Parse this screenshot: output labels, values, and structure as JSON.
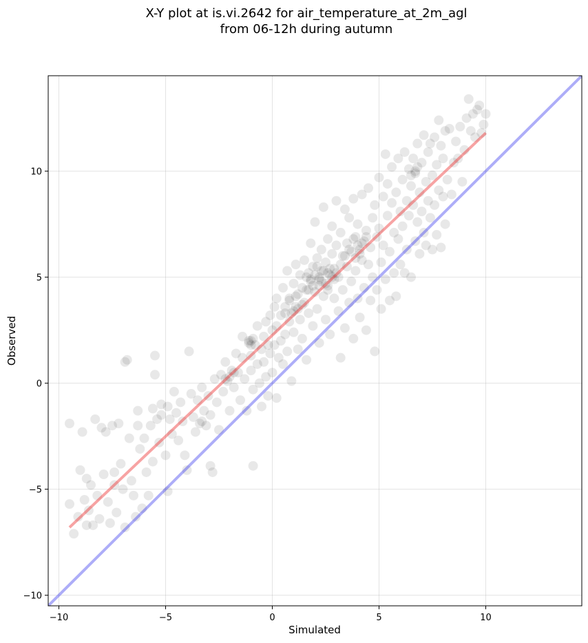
{
  "chart_data": {
    "type": "scatter",
    "title": [
      "X-Y plot at is.vi.2642 for air_temperature_at_2m_agl",
      "from 06-12h during autumn"
    ],
    "xlabel": "Simulated",
    "ylabel": "Observed",
    "xlim": [
      -10.5,
      14.5
    ],
    "ylim": [
      -10.5,
      14.5
    ],
    "xticks": [
      -10,
      -5,
      0,
      5,
      10
    ],
    "yticks": [
      -10,
      -5,
      0,
      5,
      10
    ],
    "xtick_labels": [
      "−10",
      "−5",
      "0",
      "5",
      "10"
    ],
    "ytick_labels": [
      "−10",
      "−5",
      "0",
      "5",
      "10"
    ],
    "grid": true,
    "point_color": "#000000",
    "point_alpha": 0.09,
    "fit_line": {
      "x": [
        -9.5,
        10
      ],
      "y": [
        -6.8,
        11.8
      ],
      "color": "#ee3333",
      "alpha": 0.45
    },
    "identity_line": {
      "x": [
        -10.5,
        14.5
      ],
      "y": [
        -10.5,
        14.5
      ],
      "color": "#3333ee",
      "alpha": 0.4
    },
    "points": [
      [
        -9.5,
        -1.9
      ],
      [
        -9.5,
        -5.7
      ],
      [
        -9.3,
        -7.1
      ],
      [
        -9.1,
        -6.3
      ],
      [
        -9.0,
        -4.1
      ],
      [
        -8.9,
        -2.3
      ],
      [
        -8.8,
        -5.5
      ],
      [
        -8.7,
        -4.5
      ],
      [
        -8.7,
        -6.7
      ],
      [
        -8.6,
        -6.0
      ],
      [
        -8.5,
        -4.8
      ],
      [
        -8.4,
        -6.7
      ],
      [
        -8.3,
        -1.7
      ],
      [
        -8.2,
        -5.3
      ],
      [
        -8.1,
        -6.4
      ],
      [
        -8.0,
        -2.1
      ],
      [
        -7.9,
        -4.3
      ],
      [
        -7.8,
        -2.3
      ],
      [
        -7.7,
        -5.6
      ],
      [
        -7.6,
        -6.6
      ],
      [
        -7.5,
        -2.0
      ],
      [
        -7.4,
        -4.8
      ],
      [
        -7.3,
        -6.1
      ],
      [
        -7.2,
        -1.9
      ],
      [
        -7.1,
        -3.8
      ],
      [
        -7.0,
        -5.0
      ],
      [
        -6.9,
        -6.8
      ],
      [
        -6.9,
        1.0
      ],
      [
        -6.8,
        1.1
      ],
      [
        -6.7,
        -2.6
      ],
      [
        -6.6,
        -4.6
      ],
      [
        -6.5,
        -5.3
      ],
      [
        -6.4,
        -6.3
      ],
      [
        -6.3,
        -1.3
      ],
      [
        -6.2,
        -3.1
      ],
      [
        -6.1,
        -5.9
      ],
      [
        -6.0,
        -2.6
      ],
      [
        -5.9,
        -4.2
      ],
      [
        -5.8,
        -5.3
      ],
      [
        -5.7,
        -2.0
      ],
      [
        -5.6,
        -3.7
      ],
      [
        -5.5,
        0.4
      ],
      [
        -5.5,
        1.3
      ],
      [
        -5.4,
        -1.7
      ],
      [
        -5.3,
        -2.8
      ],
      [
        -5.2,
        -1.0
      ],
      [
        -5.0,
        -3.4
      ],
      [
        -4.9,
        -5.1
      ],
      [
        -4.8,
        -1.7
      ],
      [
        -4.7,
        -2.4
      ],
      [
        -4.6,
        -0.4
      ],
      [
        -4.5,
        -1.4
      ],
      [
        -4.4,
        -2.7
      ],
      [
        -4.3,
        -0.9
      ],
      [
        -4.2,
        -1.8
      ],
      [
        -4.1,
        -3.4
      ],
      [
        -4.0,
        -4.1
      ],
      [
        -3.9,
        1.5
      ],
      [
        -3.8,
        -0.5
      ],
      [
        -3.7,
        -1.6
      ],
      [
        -3.6,
        -2.3
      ],
      [
        -3.5,
        -0.8
      ],
      [
        -3.4,
        -1.9
      ],
      [
        -3.3,
        -0.2
      ],
      [
        -3.2,
        -1.3
      ],
      [
        -3.1,
        -2.0
      ],
      [
        -3.0,
        -0.6
      ],
      [
        -2.9,
        -1.5
      ],
      [
        -2.9,
        -3.9
      ],
      [
        -2.8,
        -4.2
      ],
      [
        -2.7,
        0.2
      ],
      [
        -2.6,
        -0.9
      ],
      [
        -2.5,
        -2.2
      ],
      [
        -2.4,
        0.4
      ],
      [
        -2.3,
        -0.4
      ],
      [
        -2.2,
        1.0
      ],
      [
        -2.1,
        0.1
      ],
      [
        -2.0,
        -1.3
      ],
      [
        -1.9,
        0.6
      ],
      [
        -1.8,
        -0.2
      ],
      [
        -1.7,
        1.4
      ],
      [
        -1.6,
        0.5
      ],
      [
        -1.5,
        -0.8
      ],
      [
        -1.4,
        2.2
      ],
      [
        -1.4,
        1.2
      ],
      [
        -1.3,
        0.2
      ],
      [
        -1.2,
        -1.3
      ],
      [
        -1.1,
        2.0
      ],
      [
        -1.0,
        1.3
      ],
      [
        -1.0,
        0.6
      ],
      [
        -0.9,
        -0.3
      ],
      [
        -0.9,
        -3.9
      ],
      [
        -0.8,
        1.8
      ],
      [
        -0.7,
        2.7
      ],
      [
        -0.7,
        0.9
      ],
      [
        -0.6,
        0.0
      ],
      [
        -0.5,
        1.6
      ],
      [
        -0.5,
        -1.1
      ],
      [
        -0.4,
        2.2
      ],
      [
        -0.4,
        1.0
      ],
      [
        -0.3,
        2.9
      ],
      [
        -0.3,
        0.3
      ],
      [
        -0.2,
        1.8
      ],
      [
        -0.2,
        -0.6
      ],
      [
        -0.1,
        3.2
      ],
      [
        -0.1,
        1.4
      ],
      [
        0.0,
        2.5
      ],
      [
        0.0,
        0.5
      ],
      [
        0.1,
        3.6
      ],
      [
        0.1,
        1.8
      ],
      [
        0.2,
        4.0
      ],
      [
        0.2,
        2.7
      ],
      [
        0.2,
        -0.7
      ],
      [
        0.3,
        1.2
      ],
      [
        0.4,
        3.2
      ],
      [
        0.4,
        2.0
      ],
      [
        0.5,
        4.5
      ],
      [
        0.5,
        0.9
      ],
      [
        0.6,
        3.6
      ],
      [
        0.6,
        2.3
      ],
      [
        0.7,
        5.3
      ],
      [
        0.7,
        1.5
      ],
      [
        0.8,
        4.0
      ],
      [
        0.8,
        2.9
      ],
      [
        0.9,
        3.3
      ],
      [
        0.9,
        0.1
      ],
      [
        1.0,
        4.7
      ],
      [
        1.0,
        2.4
      ],
      [
        1.1,
        5.6
      ],
      [
        1.1,
        3.6
      ],
      [
        1.2,
        4.2
      ],
      [
        1.2,
        1.6
      ],
      [
        1.3,
        5.1
      ],
      [
        1.3,
        3.0
      ],
      [
        1.4,
        4.5
      ],
      [
        1.4,
        2.1
      ],
      [
        1.5,
        3.8
      ],
      [
        1.5,
        5.8
      ],
      [
        1.6,
        4.4
      ],
      [
        1.6,
        1.1
      ],
      [
        1.7,
        5.2
      ],
      [
        1.7,
        3.3
      ],
      [
        1.8,
        6.6
      ],
      [
        1.8,
        4.8
      ],
      [
        1.9,
        2.7
      ],
      [
        1.9,
        5.5
      ],
      [
        2.0,
        4.3
      ],
      [
        2.0,
        7.6
      ],
      [
        2.1,
        5.9
      ],
      [
        2.1,
        3.5
      ],
      [
        2.2,
        4.9
      ],
      [
        2.2,
        1.9
      ],
      [
        2.3,
        6.3
      ],
      [
        2.3,
        5.3
      ],
      [
        2.4,
        4.1
      ],
      [
        2.4,
        8.3
      ],
      [
        2.5,
        5.7
      ],
      [
        2.5,
        3.0
      ],
      [
        2.6,
        6.8
      ],
      [
        2.6,
        4.6
      ],
      [
        2.7,
        5.1
      ],
      [
        2.7,
        2.3
      ],
      [
        2.8,
        6.1
      ],
      [
        2.8,
        7.4
      ],
      [
        2.9,
        4.0
      ],
      [
        2.9,
        5.4
      ],
      [
        3.0,
        8.6
      ],
      [
        3.0,
        6.5
      ],
      [
        3.1,
        3.4
      ],
      [
        3.1,
        5.0
      ],
      [
        3.2,
        7.1
      ],
      [
        3.2,
        1.2
      ],
      [
        3.3,
        6.0
      ],
      [
        3.3,
        4.4
      ],
      [
        3.4,
        8.2
      ],
      [
        3.4,
        2.6
      ],
      [
        3.5,
        6.6
      ],
      [
        3.5,
        5.5
      ],
      [
        3.6,
        3.8
      ],
      [
        3.6,
        7.8
      ],
      [
        3.7,
        6.2
      ],
      [
        3.7,
        4.8
      ],
      [
        3.8,
        8.7
      ],
      [
        3.8,
        2.1
      ],
      [
        3.9,
        6.9
      ],
      [
        3.9,
        5.3
      ],
      [
        4.0,
        4.0
      ],
      [
        4.0,
        7.5
      ],
      [
        4.1,
        6.3
      ],
      [
        4.1,
        3.1
      ],
      [
        4.2,
        5.8
      ],
      [
        4.2,
        8.9
      ],
      [
        4.3,
        6.7
      ],
      [
        4.3,
        4.5
      ],
      [
        4.4,
        7.2
      ],
      [
        4.4,
        2.5
      ],
      [
        4.5,
        5.6
      ],
      [
        4.5,
        9.2
      ],
      [
        4.6,
        6.4
      ],
      [
        4.6,
        3.9
      ],
      [
        4.7,
        7.8
      ],
      [
        4.7,
        5.0
      ],
      [
        4.8,
        8.4
      ],
      [
        4.8,
        1.5
      ],
      [
        4.9,
        6.9
      ],
      [
        4.9,
        4.4
      ],
      [
        5.0,
        9.7
      ],
      [
        5.0,
        7.3
      ],
      [
        5.1,
        5.7
      ],
      [
        5.1,
        3.5
      ],
      [
        5.2,
        8.8
      ],
      [
        5.2,
        6.5
      ],
      [
        5.3,
        10.8
      ],
      [
        5.3,
        4.9
      ],
      [
        5.4,
        7.9
      ],
      [
        5.4,
        9.4
      ],
      [
        5.5,
        6.2
      ],
      [
        5.5,
        3.9
      ],
      [
        5.6,
        8.5
      ],
      [
        5.6,
        10.2
      ],
      [
        5.7,
        7.1
      ],
      [
        5.7,
        5.2
      ],
      [
        5.8,
        9.0
      ],
      [
        5.8,
        4.1
      ],
      [
        5.9,
        10.6
      ],
      [
        5.9,
        6.8
      ],
      [
        6.0,
        8.1
      ],
      [
        6.0,
        5.6
      ],
      [
        6.1,
        9.6
      ],
      [
        6.1,
        7.4
      ],
      [
        6.2,
        10.9
      ],
      [
        6.2,
        5.2
      ],
      [
        6.3,
        8.6
      ],
      [
        6.3,
        6.3
      ],
      [
        6.4,
        10.1
      ],
      [
        6.4,
        7.9
      ],
      [
        6.5,
        9.3
      ],
      [
        6.5,
        5.0
      ],
      [
        6.6,
        10.6
      ],
      [
        6.6,
        8.4
      ],
      [
        6.7,
        6.7
      ],
      [
        6.7,
        9.9
      ],
      [
        6.8,
        7.6
      ],
      [
        6.8,
        11.3
      ],
      [
        6.9,
        9.0
      ],
      [
        6.9,
        6.1
      ],
      [
        7.0,
        10.4
      ],
      [
        7.0,
        8.1
      ],
      [
        7.1,
        11.7
      ],
      [
        7.1,
        7.1
      ],
      [
        7.2,
        9.5
      ],
      [
        7.2,
        6.5
      ],
      [
        7.3,
        10.9
      ],
      [
        7.3,
        8.6
      ],
      [
        7.4,
        7.8
      ],
      [
        7.4,
        11.3
      ],
      [
        7.5,
        9.8
      ],
      [
        7.5,
        6.3
      ],
      [
        7.6,
        11.6
      ],
      [
        7.6,
        8.4
      ],
      [
        7.7,
        10.3
      ],
      [
        7.7,
        7.0
      ],
      [
        7.8,
        12.4
      ],
      [
        7.8,
        9.1
      ],
      [
        7.9,
        11.2
      ],
      [
        7.9,
        6.4
      ],
      [
        8.0,
        10.6
      ],
      [
        8.0,
        8.8
      ],
      [
        8.1,
        11.9
      ],
      [
        8.1,
        7.5
      ],
      [
        8.2,
        9.6
      ],
      [
        8.3,
        12.0
      ],
      [
        8.4,
        8.9
      ],
      [
        8.5,
        10.4
      ],
      [
        8.6,
        11.4
      ],
      [
        8.7,
        10.6
      ],
      [
        8.8,
        12.1
      ],
      [
        8.9,
        9.5
      ],
      [
        9.0,
        11.0
      ],
      [
        9.1,
        12.5
      ],
      [
        9.2,
        13.4
      ],
      [
        9.3,
        11.9
      ],
      [
        9.4,
        12.7
      ],
      [
        9.5,
        11.6
      ],
      [
        9.6,
        12.9
      ],
      [
        9.7,
        13.1
      ],
      [
        9.8,
        11.8
      ],
      [
        9.9,
        12.2
      ],
      [
        10.0,
        12.7
      ],
      [
        1.8,
        4.9
      ],
      [
        2.0,
        5.1
      ],
      [
        2.2,
        5.0
      ],
      [
        2.4,
        5.3
      ],
      [
        2.6,
        5.2
      ],
      [
        2.8,
        5.0
      ],
      [
        1.9,
        4.6
      ],
      [
        2.3,
        4.8
      ],
      [
        2.7,
        5.4
      ],
      [
        2.1,
        5.5
      ],
      [
        2.5,
        4.7
      ],
      [
        3.0,
        5.2
      ],
      [
        1.6,
        5.0
      ],
      [
        2.9,
        4.9
      ],
      [
        2.2,
        4.6
      ],
      [
        1.2,
        3.5
      ],
      [
        1.4,
        3.7
      ],
      [
        1.0,
        3.4
      ],
      [
        -1.0,
        2.0
      ],
      [
        -1.0,
        1.8
      ],
      [
        -0.9,
        2.1
      ],
      [
        -1.1,
        1.9
      ],
      [
        6.7,
        10.0
      ],
      [
        6.5,
        9.8
      ],
      [
        6.8,
        10.2
      ],
      [
        4.0,
        6.5
      ],
      [
        3.8,
        6.8
      ],
      [
        4.2,
        6.6
      ],
      [
        3.6,
        6.3
      ],
      [
        4.4,
        6.9
      ],
      [
        3.9,
        5.9
      ],
      [
        4.1,
        6.1
      ],
      [
        3.4,
        6.0
      ],
      [
        1.7,
        4.4
      ],
      [
        2.6,
        4.4
      ],
      [
        3.2,
        5.6
      ],
      [
        -2.0,
        0.3
      ],
      [
        -1.8,
        0.5
      ],
      [
        -2.2,
        0.2
      ],
      [
        0.8,
        3.9
      ],
      [
        0.6,
        3.3
      ],
      [
        1.1,
        4.1
      ],
      [
        -3.3,
        -1.8
      ],
      [
        -5.6,
        -1.2
      ],
      [
        -5.2,
        -1.5
      ],
      [
        -4.9,
        -1.1
      ],
      [
        -6.3,
        -2.0
      ],
      [
        -7.4,
        -4.2
      ]
    ]
  }
}
